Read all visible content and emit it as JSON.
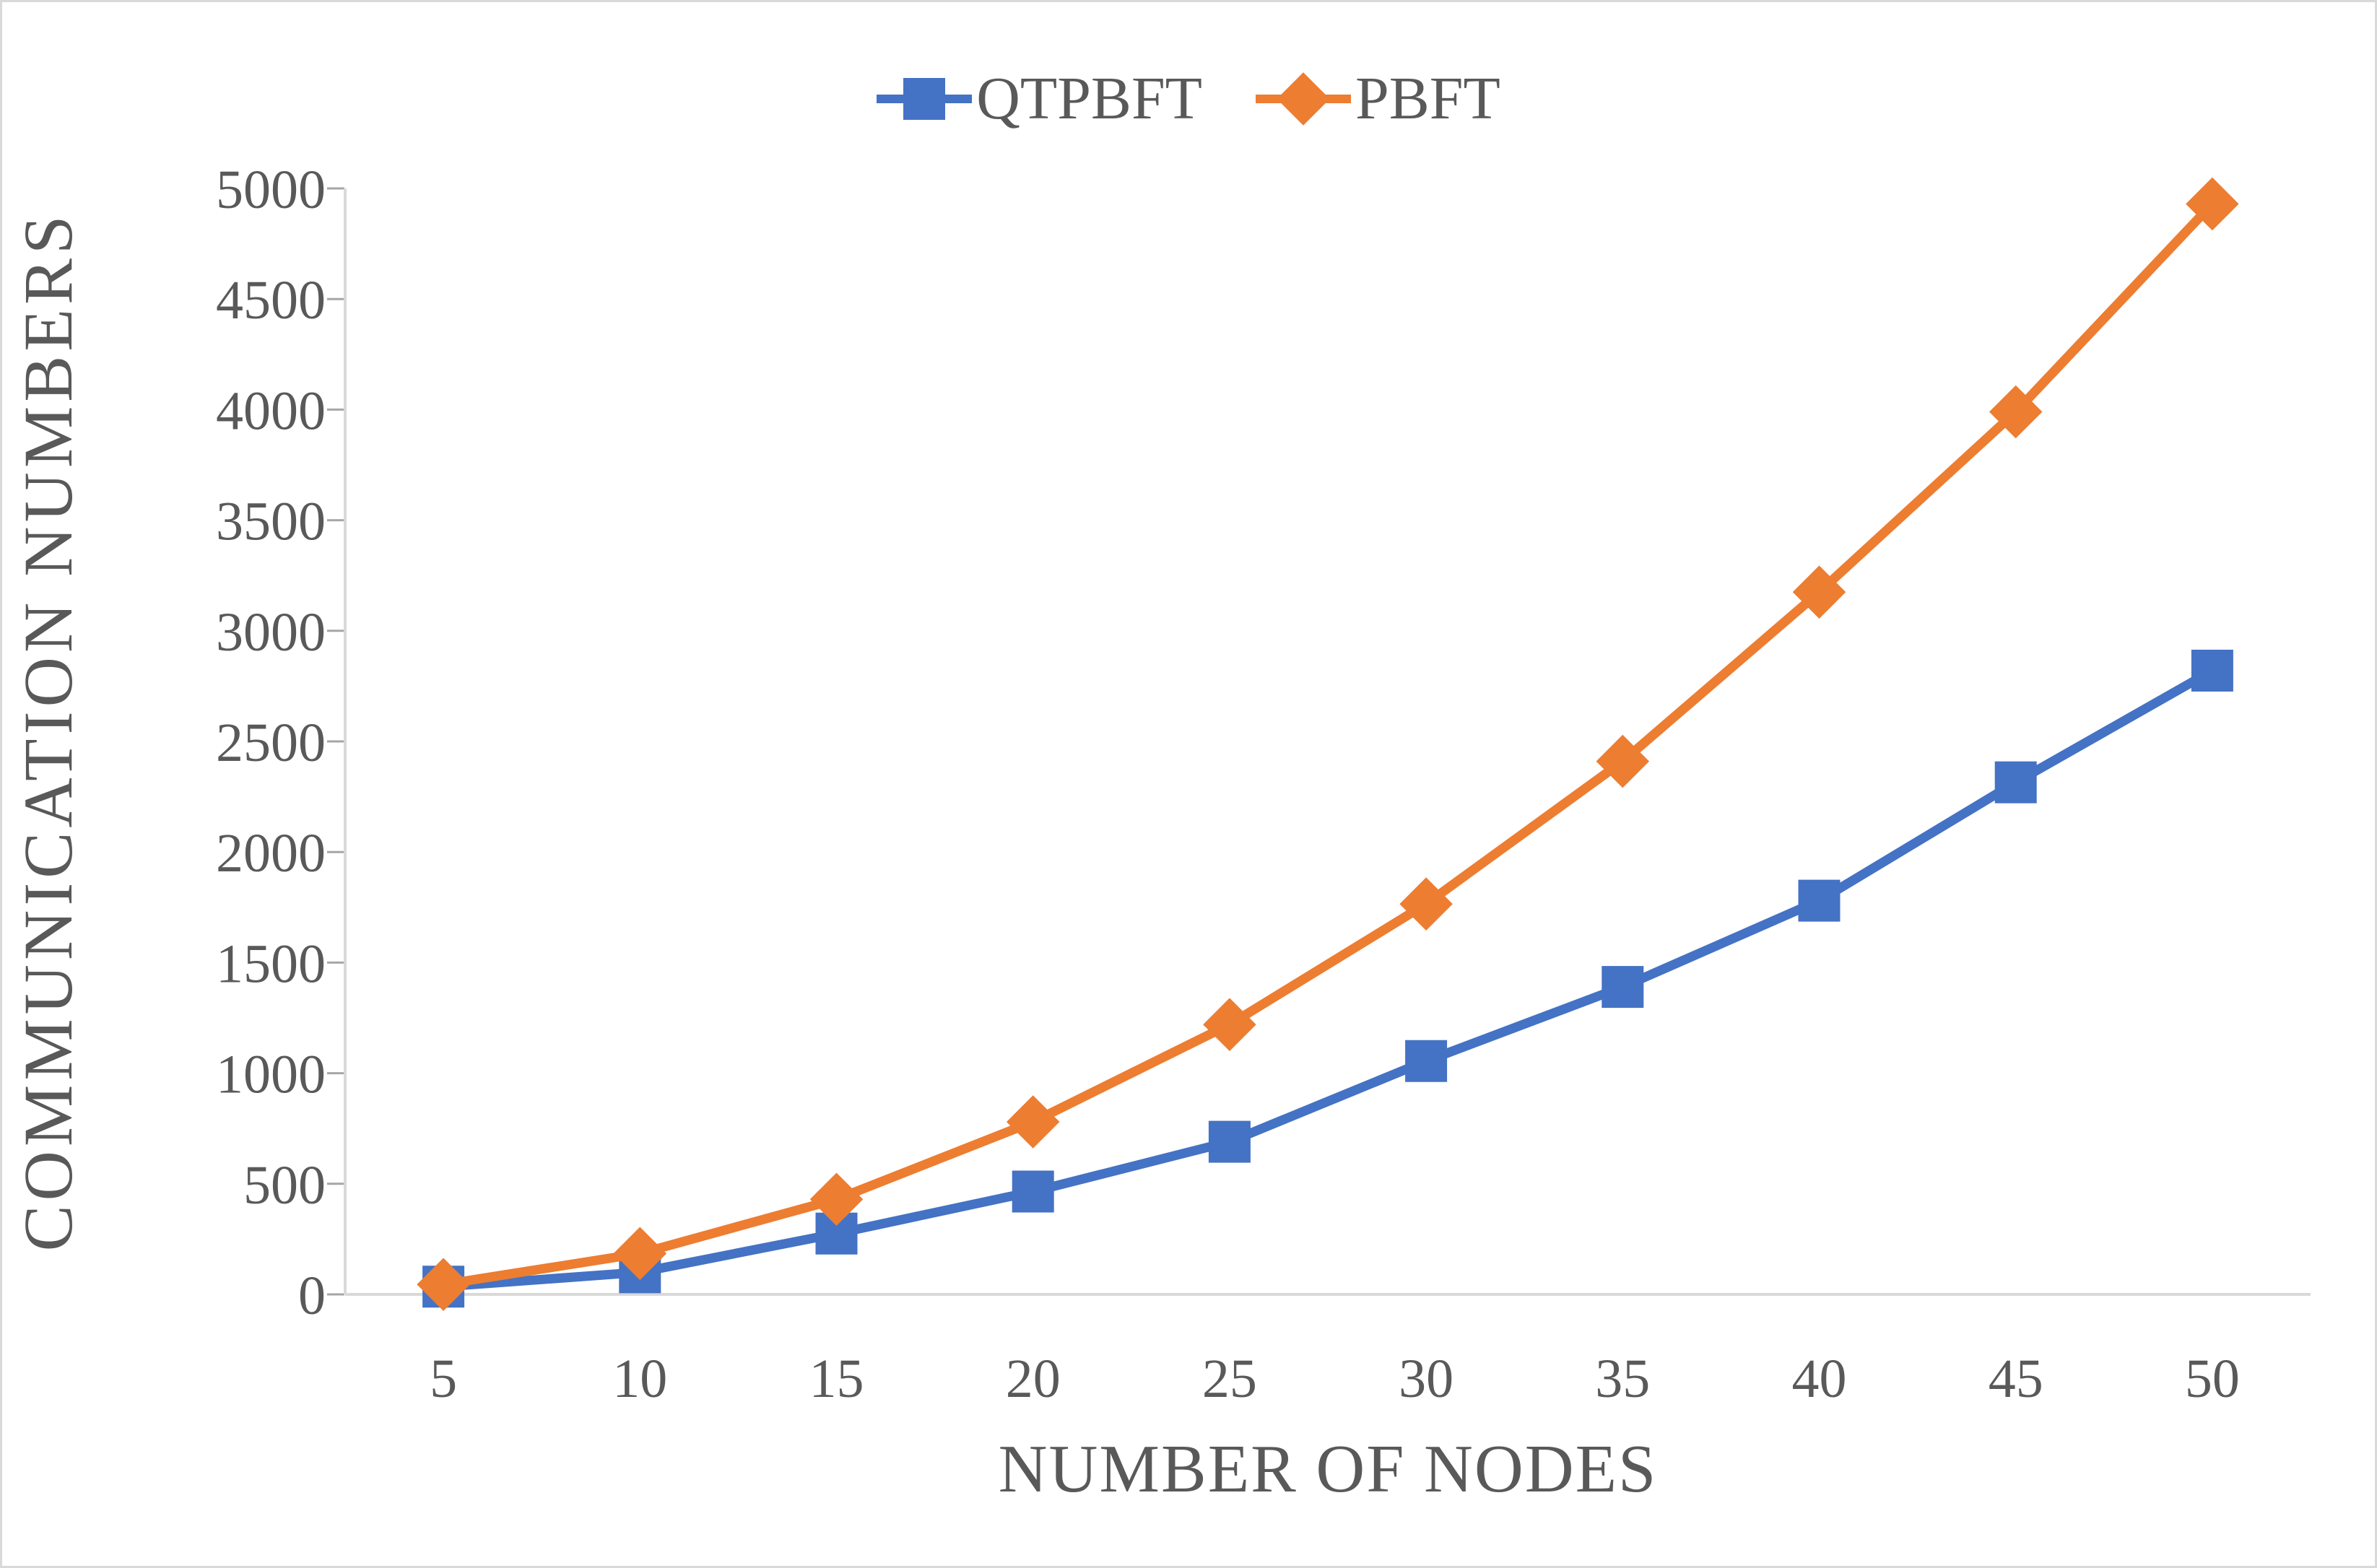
{
  "chart_data": {
    "type": "line",
    "title": "",
    "xlabel": "NUMBER OF NODES",
    "ylabel": "COMMUNICATION NUMBERS",
    "categories": [
      5,
      10,
      15,
      20,
      25,
      30,
      35,
      40,
      45,
      50
    ],
    "series": [
      {
        "name": "QTPBFT",
        "color": "#4472C4",
        "marker": "square",
        "values": [
          35,
          100,
          275,
          465,
          690,
          1055,
          1390,
          1780,
          2315,
          2820
        ]
      },
      {
        "name": "PBFT",
        "color": "#ED7D31",
        "marker": "diamond",
        "values": [
          45,
          185,
          430,
          780,
          1220,
          1765,
          2410,
          3175,
          3990,
          4930
        ]
      }
    ],
    "ylim": [
      0,
      5000
    ],
    "ytick_step": 500,
    "ytick_labels": [
      "0",
      "500",
      "1000",
      "1500",
      "2000",
      "2500",
      "3000",
      "3500",
      "4000",
      "4500",
      "5000"
    ],
    "legend_position": "top-center",
    "grid": false,
    "axis_color": "#D9D9D9",
    "tick_color": "#A6A6A6",
    "text_color": "#595959",
    "background_color": "#FFFFFF",
    "border_color": "#D9D9D9"
  }
}
